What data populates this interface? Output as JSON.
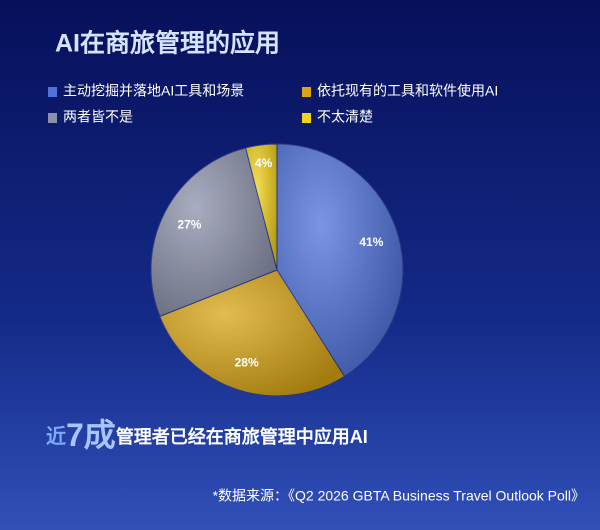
{
  "chart_data": {
    "type": "pie",
    "title": "AI在商旅管理的应用",
    "categories": [
      "主动挖掘并落地AI工具和场景",
      "依托现有的工具和软件使用AI",
      "两者皆不是",
      "不太清楚"
    ],
    "values": [
      41,
      28,
      27,
      4
    ],
    "value_labels": [
      "41%",
      "28%",
      "27%",
      "4%"
    ],
    "colors": [
      "#4f72dc",
      "#d9a514",
      "#8c91aa",
      "#f2d21a"
    ],
    "legend": "top",
    "footer": {
      "prefix": "近",
      "highlight": "7成",
      "rest": "管理者已经在商旅管理中应用AI"
    },
    "source": "*数据来源：《Q2 2026 GBTA Business Travel Outlook Poll》"
  }
}
